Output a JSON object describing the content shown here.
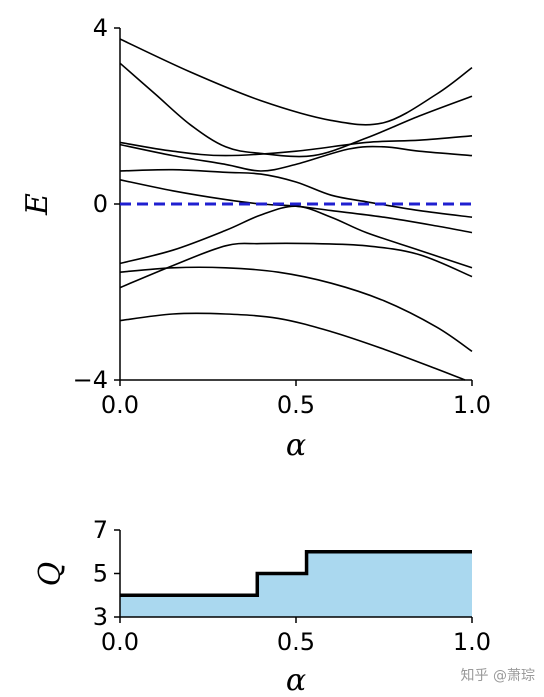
{
  "chart_data": [
    {
      "type": "line",
      "xlabel": "α",
      "ylabel": "E",
      "xlim": [
        0,
        1
      ],
      "ylim": [
        -4,
        4
      ],
      "xticks": [
        "0.0",
        "0.5",
        "1.0"
      ],
      "yticks": [
        "−4",
        "0",
        "4"
      ],
      "reference_line": {
        "y": 0,
        "style": "dashed",
        "color": "#1f1fd0"
      },
      "series_color": "#000000",
      "series": [
        {
          "points": [
            [
              0,
              3.75
            ],
            [
              0.2,
              3.0
            ],
            [
              0.4,
              2.35
            ],
            [
              0.6,
              1.9
            ],
            [
              0.75,
              1.85
            ],
            [
              0.9,
              2.5
            ],
            [
              1.0,
              3.1
            ]
          ]
        },
        {
          "points": [
            [
              0,
              3.2
            ],
            [
              0.1,
              2.5
            ],
            [
              0.2,
              1.8
            ],
            [
              0.3,
              1.3
            ],
            [
              0.4,
              1.15
            ],
            [
              0.55,
              1.1
            ],
            [
              0.7,
              1.5
            ],
            [
              0.85,
              2.0
            ],
            [
              1.0,
              2.45
            ]
          ]
        },
        {
          "points": [
            [
              0,
              1.4
            ],
            [
              0.15,
              1.2
            ],
            [
              0.3,
              1.1
            ],
            [
              0.5,
              1.2
            ],
            [
              0.7,
              1.4
            ],
            [
              0.85,
              1.45
            ],
            [
              1.0,
              1.55
            ]
          ]
        },
        {
          "points": [
            [
              0,
              1.35
            ],
            [
              0.15,
              1.1
            ],
            [
              0.3,
              0.9
            ],
            [
              0.4,
              0.75
            ],
            [
              0.5,
              0.9
            ],
            [
              0.65,
              1.25
            ],
            [
              0.75,
              1.3
            ],
            [
              0.85,
              1.2
            ],
            [
              1.0,
              1.1
            ]
          ]
        },
        {
          "points": [
            [
              0,
              0.75
            ],
            [
              0.15,
              0.78
            ],
            [
              0.3,
              0.72
            ],
            [
              0.4,
              0.68
            ],
            [
              0.5,
              0.5
            ],
            [
              0.6,
              0.2
            ],
            [
              0.7,
              0.05
            ],
            [
              0.85,
              -0.15
            ],
            [
              1.0,
              -0.3
            ]
          ]
        },
        {
          "points": [
            [
              0,
              0.55
            ],
            [
              0.15,
              0.3
            ],
            [
              0.3,
              0.1
            ],
            [
              0.4,
              0.0
            ],
            [
              0.5,
              -0.05
            ],
            [
              0.6,
              -0.15
            ],
            [
              0.75,
              -0.3
            ],
            [
              0.9,
              -0.5
            ],
            [
              1.0,
              -0.65
            ]
          ]
        },
        {
          "points": [
            [
              0,
              -1.35
            ],
            [
              0.15,
              -1.05
            ],
            [
              0.3,
              -0.6
            ],
            [
              0.4,
              -0.25
            ],
            [
              0.5,
              -0.05
            ],
            [
              0.6,
              -0.3
            ],
            [
              0.7,
              -0.65
            ],
            [
              0.85,
              -1.05
            ],
            [
              1.0,
              -1.45
            ]
          ]
        },
        {
          "points": [
            [
              0,
              -1.9
            ],
            [
              0.15,
              -1.4
            ],
            [
              0.3,
              -0.95
            ],
            [
              0.4,
              -0.9
            ],
            [
              0.55,
              -0.9
            ],
            [
              0.7,
              -0.95
            ],
            [
              0.85,
              -1.15
            ],
            [
              1.0,
              -1.65
            ]
          ]
        },
        {
          "points": [
            [
              0,
              -1.55
            ],
            [
              0.15,
              -1.45
            ],
            [
              0.3,
              -1.45
            ],
            [
              0.45,
              -1.55
            ],
            [
              0.6,
              -1.8
            ],
            [
              0.75,
              -2.2
            ],
            [
              0.9,
              -2.8
            ],
            [
              1.0,
              -3.35
            ]
          ]
        },
        {
          "points": [
            [
              0,
              -2.65
            ],
            [
              0.15,
              -2.5
            ],
            [
              0.3,
              -2.5
            ],
            [
              0.45,
              -2.6
            ],
            [
              0.6,
              -2.9
            ],
            [
              0.75,
              -3.3
            ],
            [
              0.9,
              -3.75
            ],
            [
              0.98,
              -4.0
            ]
          ]
        }
      ]
    },
    {
      "type": "area",
      "xlabel": "α",
      "ylabel": "Q",
      "xlim": [
        0,
        1
      ],
      "ylim": [
        3,
        7
      ],
      "xticks": [
        "0.0",
        "0.5",
        "1.0"
      ],
      "yticks": [
        "3",
        "5",
        "7"
      ],
      "fill_color": "#aad8ef",
      "line_color": "#000000",
      "steps": [
        [
          0.0,
          4
        ],
        [
          0.39,
          4
        ],
        [
          0.39,
          5
        ],
        [
          0.53,
          5
        ],
        [
          0.53,
          6
        ],
        [
          1.0,
          6
        ]
      ]
    }
  ],
  "watermark": "知乎 @萧琮"
}
